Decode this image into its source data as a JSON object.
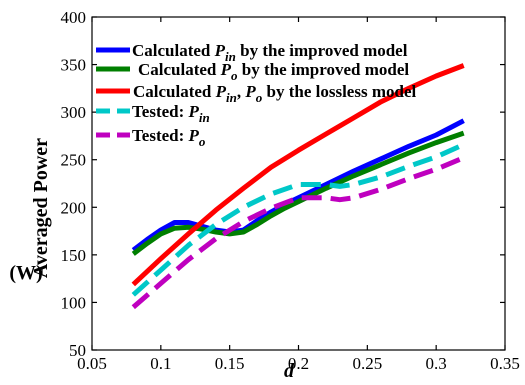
{
  "chart_data": {
    "type": "line",
    "xlabel": "d",
    "ylabel": "Averaged Power",
    "ylabel_unit": "(W)",
    "xlim": [
      0.05,
      0.35
    ],
    "ylim": [
      50,
      400
    ],
    "xticks": [
      0.05,
      0.1,
      0.15,
      0.2,
      0.25,
      0.3,
      0.35
    ],
    "xtick_labels": [
      "0.05",
      "0.1",
      "0.15",
      "0.2",
      "0.25",
      "0.3",
      "0.35"
    ],
    "yticks": [
      50,
      100,
      150,
      200,
      250,
      300,
      350,
      400
    ],
    "ytick_labels": [
      "50",
      "100",
      "150",
      "200",
      "250",
      "300",
      "350",
      "400"
    ],
    "grid": false,
    "legend_position": "top-left",
    "series": [
      {
        "legend": [
          {
            "t": "Calculated "
          },
          {
            "t": "P",
            "i": true
          },
          {
            "t": "in",
            "i": true,
            "sub": true
          },
          {
            "t": " by the improved model"
          }
        ],
        "color": "#0000ff",
        "dash": "solid",
        "x": [
          0.08,
          0.09,
          0.1,
          0.11,
          0.12,
          0.13,
          0.14,
          0.15,
          0.16,
          0.17,
          0.18,
          0.19,
          0.2,
          0.22,
          0.24,
          0.26,
          0.28,
          0.3,
          0.32
        ],
        "y": [
          155,
          166,
          176,
          184,
          184,
          180,
          176,
          174,
          176,
          186,
          195,
          203,
          210,
          224,
          238,
          251,
          264,
          276,
          291
        ]
      },
      {
        "legend": [
          {
            "t": "Calculated "
          },
          {
            "t": "P",
            "i": true
          },
          {
            "t": "o",
            "i": true,
            "sub": true
          },
          {
            "t": " by the improved model"
          }
        ],
        "color": "#007f00",
        "dash": "solid",
        "x": [
          0.08,
          0.09,
          0.1,
          0.11,
          0.12,
          0.13,
          0.14,
          0.15,
          0.16,
          0.17,
          0.18,
          0.19,
          0.2,
          0.22,
          0.24,
          0.26,
          0.28,
          0.3,
          0.32
        ],
        "y": [
          151,
          162,
          172,
          178,
          179,
          177,
          174,
          172,
          174,
          182,
          191,
          199,
          206,
          220,
          233,
          245,
          257,
          268,
          278
        ]
      },
      {
        "legend": [
          {
            "t": "Calculated "
          },
          {
            "t": "P",
            "i": true
          },
          {
            "t": "in",
            "i": true,
            "sub": true
          },
          {
            "t": ", "
          },
          {
            "t": "P",
            "i": true
          },
          {
            "t": "o",
            "i": true,
            "sub": true
          },
          {
            "t": " by the lossless model"
          }
        ],
        "color": "#ff0000",
        "dash": "solid",
        "x": [
          0.08,
          0.1,
          0.12,
          0.14,
          0.16,
          0.18,
          0.2,
          0.22,
          0.24,
          0.26,
          0.28,
          0.3,
          0.32
        ],
        "y": [
          119,
          146,
          172,
          197,
          220,
          242,
          260,
          277,
          294,
          311,
          325,
          338,
          349
        ]
      },
      {
        "legend": [
          {
            "t": "Tested: "
          },
          {
            "t": "P",
            "i": true
          },
          {
            "t": "in",
            "i": true,
            "sub": true
          }
        ],
        "color": "#00c8c8",
        "dash": "dashed",
        "x": [
          0.08,
          0.1,
          0.12,
          0.14,
          0.16,
          0.18,
          0.2,
          0.22,
          0.23,
          0.24,
          0.26,
          0.28,
          0.3,
          0.32
        ],
        "y": [
          108,
          134,
          160,
          182,
          200,
          214,
          224,
          224,
          222,
          224,
          232,
          243,
          253,
          266
        ]
      },
      {
        "legend": [
          {
            "t": "Tested: "
          },
          {
            "t": "P",
            "i": true
          },
          {
            "t": "o",
            "i": true,
            "sub": true
          }
        ],
        "color": "#bf00bf",
        "dash": "dashed",
        "x": [
          0.08,
          0.1,
          0.12,
          0.14,
          0.16,
          0.18,
          0.2,
          0.22,
          0.23,
          0.24,
          0.26,
          0.28,
          0.3,
          0.32
        ],
        "y": [
          95,
          120,
          145,
          167,
          185,
          199,
          210,
          210,
          208,
          210,
          219,
          230,
          240,
          252
        ]
      }
    ]
  }
}
